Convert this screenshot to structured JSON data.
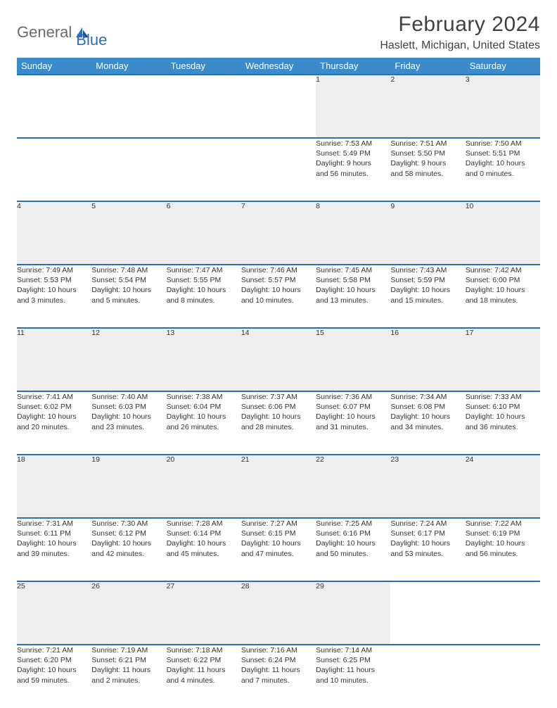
{
  "brand": {
    "part1": "General",
    "part2": "Blue"
  },
  "title": "February 2024",
  "location": "Haslett, Michigan, United States",
  "colors": {
    "header_bg": "#3b8bca",
    "row_border": "#2d6fb7",
    "daynum_bg": "#eeeeee",
    "text": "#333333",
    "title_text": "#414141"
  },
  "weekdays": [
    "Sunday",
    "Monday",
    "Tuesday",
    "Wednesday",
    "Thursday",
    "Friday",
    "Saturday"
  ],
  "weeks": [
    [
      null,
      null,
      null,
      null,
      {
        "n": "1",
        "sunrise": "7:53 AM",
        "sunset": "5:49 PM",
        "dl1": "Daylight: 9 hours",
        "dl2": "and 56 minutes."
      },
      {
        "n": "2",
        "sunrise": "7:51 AM",
        "sunset": "5:50 PM",
        "dl1": "Daylight: 9 hours",
        "dl2": "and 58 minutes."
      },
      {
        "n": "3",
        "sunrise": "7:50 AM",
        "sunset": "5:51 PM",
        "dl1": "Daylight: 10 hours",
        "dl2": "and 0 minutes."
      }
    ],
    [
      {
        "n": "4",
        "sunrise": "7:49 AM",
        "sunset": "5:53 PM",
        "dl1": "Daylight: 10 hours",
        "dl2": "and 3 minutes."
      },
      {
        "n": "5",
        "sunrise": "7:48 AM",
        "sunset": "5:54 PM",
        "dl1": "Daylight: 10 hours",
        "dl2": "and 5 minutes."
      },
      {
        "n": "6",
        "sunrise": "7:47 AM",
        "sunset": "5:55 PM",
        "dl1": "Daylight: 10 hours",
        "dl2": "and 8 minutes."
      },
      {
        "n": "7",
        "sunrise": "7:46 AM",
        "sunset": "5:57 PM",
        "dl1": "Daylight: 10 hours",
        "dl2": "and 10 minutes."
      },
      {
        "n": "8",
        "sunrise": "7:45 AM",
        "sunset": "5:58 PM",
        "dl1": "Daylight: 10 hours",
        "dl2": "and 13 minutes."
      },
      {
        "n": "9",
        "sunrise": "7:43 AM",
        "sunset": "5:59 PM",
        "dl1": "Daylight: 10 hours",
        "dl2": "and 15 minutes."
      },
      {
        "n": "10",
        "sunrise": "7:42 AM",
        "sunset": "6:00 PM",
        "dl1": "Daylight: 10 hours",
        "dl2": "and 18 minutes."
      }
    ],
    [
      {
        "n": "11",
        "sunrise": "7:41 AM",
        "sunset": "6:02 PM",
        "dl1": "Daylight: 10 hours",
        "dl2": "and 20 minutes."
      },
      {
        "n": "12",
        "sunrise": "7:40 AM",
        "sunset": "6:03 PM",
        "dl1": "Daylight: 10 hours",
        "dl2": "and 23 minutes."
      },
      {
        "n": "13",
        "sunrise": "7:38 AM",
        "sunset": "6:04 PM",
        "dl1": "Daylight: 10 hours",
        "dl2": "and 26 minutes."
      },
      {
        "n": "14",
        "sunrise": "7:37 AM",
        "sunset": "6:06 PM",
        "dl1": "Daylight: 10 hours",
        "dl2": "and 28 minutes."
      },
      {
        "n": "15",
        "sunrise": "7:36 AM",
        "sunset": "6:07 PM",
        "dl1": "Daylight: 10 hours",
        "dl2": "and 31 minutes."
      },
      {
        "n": "16",
        "sunrise": "7:34 AM",
        "sunset": "6:08 PM",
        "dl1": "Daylight: 10 hours",
        "dl2": "and 34 minutes."
      },
      {
        "n": "17",
        "sunrise": "7:33 AM",
        "sunset": "6:10 PM",
        "dl1": "Daylight: 10 hours",
        "dl2": "and 36 minutes."
      }
    ],
    [
      {
        "n": "18",
        "sunrise": "7:31 AM",
        "sunset": "6:11 PM",
        "dl1": "Daylight: 10 hours",
        "dl2": "and 39 minutes."
      },
      {
        "n": "19",
        "sunrise": "7:30 AM",
        "sunset": "6:12 PM",
        "dl1": "Daylight: 10 hours",
        "dl2": "and 42 minutes."
      },
      {
        "n": "20",
        "sunrise": "7:28 AM",
        "sunset": "6:14 PM",
        "dl1": "Daylight: 10 hours",
        "dl2": "and 45 minutes."
      },
      {
        "n": "21",
        "sunrise": "7:27 AM",
        "sunset": "6:15 PM",
        "dl1": "Daylight: 10 hours",
        "dl2": "and 47 minutes."
      },
      {
        "n": "22",
        "sunrise": "7:25 AM",
        "sunset": "6:16 PM",
        "dl1": "Daylight: 10 hours",
        "dl2": "and 50 minutes."
      },
      {
        "n": "23",
        "sunrise": "7:24 AM",
        "sunset": "6:17 PM",
        "dl1": "Daylight: 10 hours",
        "dl2": "and 53 minutes."
      },
      {
        "n": "24",
        "sunrise": "7:22 AM",
        "sunset": "6:19 PM",
        "dl1": "Daylight: 10 hours",
        "dl2": "and 56 minutes."
      }
    ],
    [
      {
        "n": "25",
        "sunrise": "7:21 AM",
        "sunset": "6:20 PM",
        "dl1": "Daylight: 10 hours",
        "dl2": "and 59 minutes."
      },
      {
        "n": "26",
        "sunrise": "7:19 AM",
        "sunset": "6:21 PM",
        "dl1": "Daylight: 11 hours",
        "dl2": "and 2 minutes."
      },
      {
        "n": "27",
        "sunrise": "7:18 AM",
        "sunset": "6:22 PM",
        "dl1": "Daylight: 11 hours",
        "dl2": "and 4 minutes."
      },
      {
        "n": "28",
        "sunrise": "7:16 AM",
        "sunset": "6:24 PM",
        "dl1": "Daylight: 11 hours",
        "dl2": "and 7 minutes."
      },
      {
        "n": "29",
        "sunrise": "7:14 AM",
        "sunset": "6:25 PM",
        "dl1": "Daylight: 11 hours",
        "dl2": "and 10 minutes."
      },
      null,
      null
    ]
  ],
  "labels": {
    "sunrise_prefix": "Sunrise: ",
    "sunset_prefix": "Sunset: "
  }
}
